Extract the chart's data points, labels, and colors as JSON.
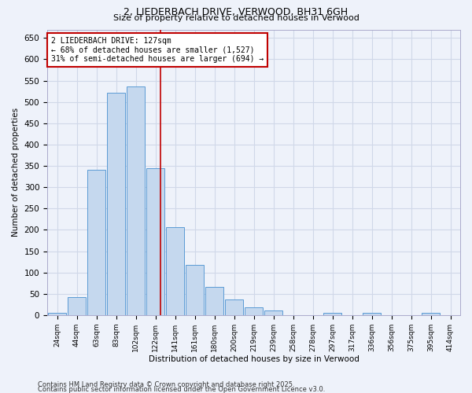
{
  "title1": "2, LIEDERBACH DRIVE, VERWOOD, BH31 6GH",
  "title2": "Size of property relative to detached houses in Verwood",
  "xlabel": "Distribution of detached houses by size in Verwood",
  "ylabel": "Number of detached properties",
  "bin_labels": [
    "24sqm",
    "44sqm",
    "63sqm",
    "83sqm",
    "102sqm",
    "122sqm",
    "141sqm",
    "161sqm",
    "180sqm",
    "200sqm",
    "219sqm",
    "239sqm",
    "258sqm",
    "278sqm",
    "297sqm",
    "317sqm",
    "336sqm",
    "356sqm",
    "375sqm",
    "395sqm",
    "414sqm"
  ],
  "bar_heights": [
    5,
    42,
    340,
    522,
    537,
    345,
    207,
    118,
    67,
    36,
    18,
    11,
    0,
    0,
    5,
    0,
    5,
    0,
    0,
    5,
    0
  ],
  "bar_color": "#c5d8ee",
  "bar_edge_color": "#5b9bd5",
  "grid_color": "#d0d8e8",
  "background_color": "#eef2fa",
  "vline_color": "#c00000",
  "annotation_line1": "2 LIEDERBACH DRIVE: 127sqm",
  "annotation_line2": "← 68% of detached houses are smaller (1,527)",
  "annotation_line3": "31% of semi-detached houses are larger (694) →",
  "annotation_box_color": "#ffffff",
  "annotation_border_color": "#c00000",
  "ylim": [
    0,
    670
  ],
  "yticks": [
    0,
    50,
    100,
    150,
    200,
    250,
    300,
    350,
    400,
    450,
    500,
    550,
    600,
    650
  ],
  "footer_text1": "Contains HM Land Registry data © Crown copyright and database right 2025.",
  "footer_text2": "Contains public sector information licensed under the Open Government Licence v3.0."
}
